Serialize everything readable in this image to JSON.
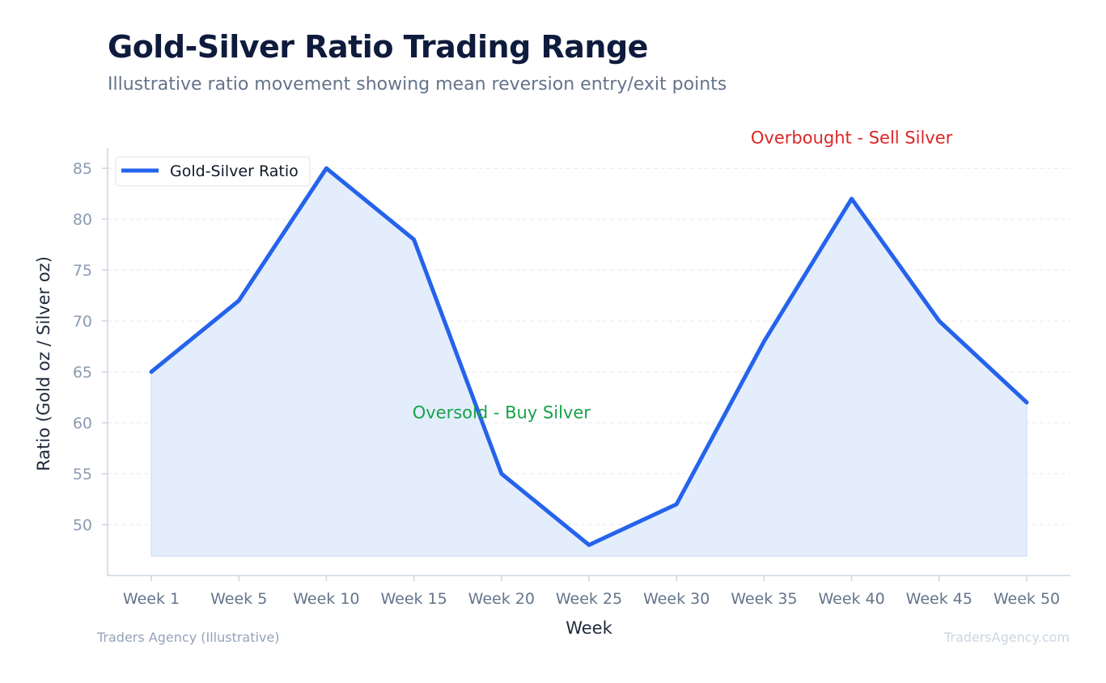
{
  "header": {
    "title": "Gold-Silver Ratio Trading Range",
    "subtitle": "Illustrative ratio movement showing mean reversion entry/exit points"
  },
  "footer": {
    "left": "Traders Agency (Illustrative)",
    "right": "TradersAgency.com"
  },
  "colors": {
    "line": "#2563eb",
    "fill": "#dbe7fb",
    "overbought": "#dc2626",
    "oversold": "#16a34a"
  },
  "chart_data": {
    "type": "area",
    "title": "Gold-Silver Ratio Trading Range",
    "subtitle": "Illustrative ratio movement showing mean reversion entry/exit points",
    "xlabel": "Week",
    "ylabel": "Ratio (Gold oz / Silver oz)",
    "categories": [
      "Week 1",
      "Week 5",
      "Week 10",
      "Week 15",
      "Week 20",
      "Week 25",
      "Week 30",
      "Week 35",
      "Week 40",
      "Week 45",
      "Week 50"
    ],
    "series": [
      {
        "name": "Gold-Silver Ratio",
        "values": [
          65,
          72,
          85,
          78,
          55,
          48,
          52,
          68,
          82,
          70,
          62
        ]
      }
    ],
    "yticks": [
      50,
      55,
      60,
      65,
      70,
      75,
      80,
      85
    ],
    "ylim": [
      45,
      87
    ],
    "grid": true,
    "legend": "top-left",
    "annotations": [
      {
        "text": "Overbought - Sell Silver",
        "category": "Week 40",
        "y": 88,
        "color": "overbought"
      },
      {
        "text": "Oversold - Buy Silver",
        "category": "Week 20",
        "y": 61,
        "color": "oversold"
      }
    ]
  }
}
